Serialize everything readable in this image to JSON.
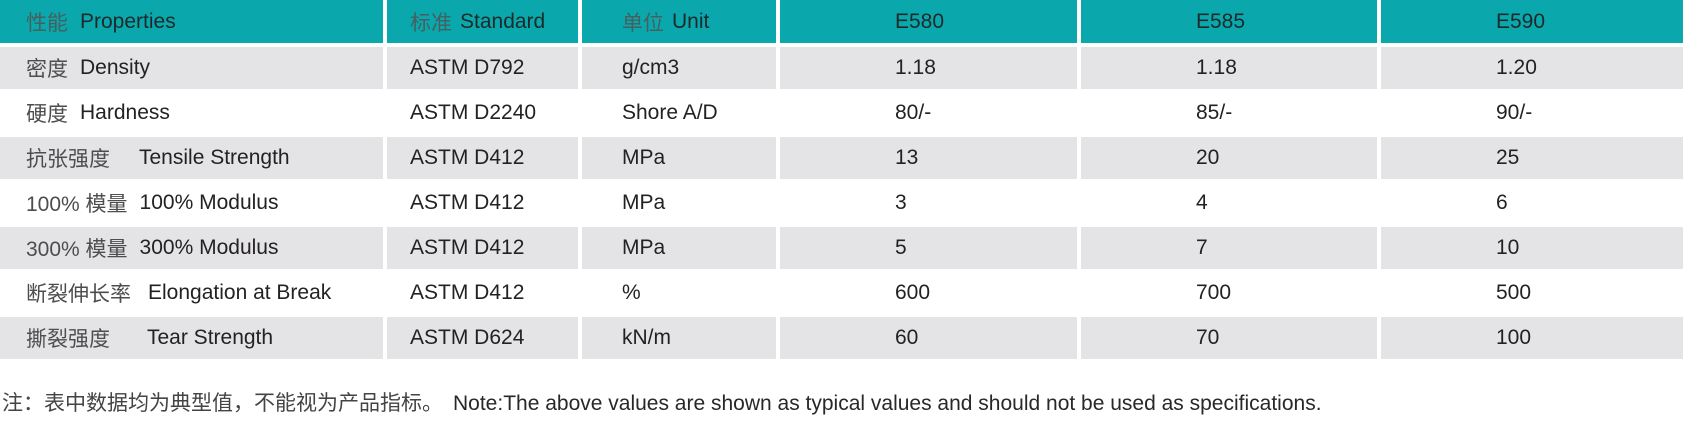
{
  "table": {
    "header": {
      "properties_zh": "性能",
      "properties_en": "Properties",
      "standard_zh": "标准",
      "standard_en": "Standard",
      "unit_zh": "单位",
      "unit_en": "Unit",
      "col_e580": "E580",
      "col_e585": "E585",
      "col_e590": "E590"
    },
    "rows": [
      {
        "property_zh": "密度",
        "property_en": "Density",
        "standard": "ASTM D792",
        "unit": "g/cm3",
        "e580": "1.18",
        "e585": "1.18",
        "e590": "1.20"
      },
      {
        "property_zh": "硬度",
        "property_en": "Hardness",
        "standard": "ASTM D2240",
        "unit": "Shore A/D",
        "e580": "80/-",
        "e585": "85/-",
        "e590": "90/-"
      },
      {
        "property_zh": "抗张强度",
        "property_en": "Tensile Strength",
        "standard": "ASTM D412",
        "unit": "MPa",
        "e580": "13",
        "e585": "20",
        "e590": "25"
      },
      {
        "property_zh": "100% 模量",
        "property_en": "100% Modulus",
        "standard": "ASTM D412",
        "unit": "MPa",
        "e580": "3",
        "e585": "4",
        "e590": "6"
      },
      {
        "property_zh": "300% 模量",
        "property_en": "300% Modulus",
        "standard": "ASTM D412",
        "unit": "MPa",
        "e580": "5",
        "e585": "7",
        "e590": "10"
      },
      {
        "property_zh": "断裂伸长率",
        "property_en": "Elongation at Break",
        "standard": "ASTM D412",
        "unit": "%",
        "e580": "600",
        "e585": "700",
        "e590": "500"
      },
      {
        "property_zh": "撕裂强度",
        "property_en": "Tear Strength",
        "standard": "ASTM D624",
        "unit": "kN/m",
        "e580": "60",
        "e585": "70",
        "e590": "100"
      }
    ],
    "note_zh": "注：表中数据均为典型值，不能视为产品指标。",
    "note_en": "Note:The above values are shown as typical values and should not be used as specifications.",
    "colors": {
      "header_bg": "#0aa8ad",
      "alt_row_bg": "#e4e4e6",
      "text": "#242122"
    }
  }
}
